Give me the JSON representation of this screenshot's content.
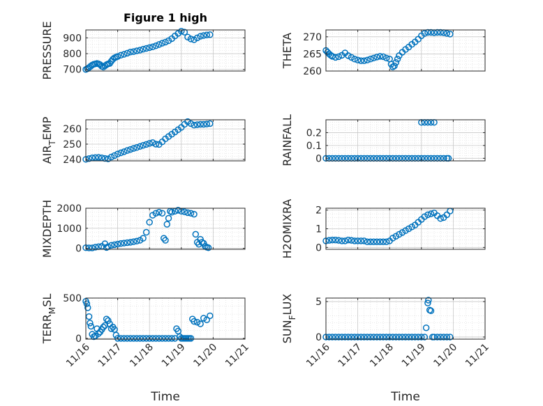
{
  "figure": {
    "title": "Figure 1 high",
    "xlabel": "Time",
    "x_ticks": [
      "11/16",
      "11/17",
      "11/18",
      "11/19",
      "11/20",
      "11/21"
    ],
    "marker_color": "#0072BD"
  },
  "chart_data": [
    {
      "type": "scatter",
      "ylabel": "PRESSURE",
      "ylim": [
        690,
        950
      ],
      "yticks": [
        700,
        800,
        900
      ],
      "title": "Figure 1 high",
      "grid": true,
      "x": [
        0,
        0.05,
        0.1,
        0.15,
        0.2,
        0.25,
        0.3,
        0.35,
        0.4,
        0.45,
        0.5,
        0.55,
        0.6,
        0.65,
        0.7,
        0.75,
        0.8,
        0.85,
        0.9,
        0.95,
        1.0,
        1.1,
        1.2,
        1.3,
        1.4,
        1.5,
        1.6,
        1.7,
        1.8,
        1.9,
        2.0,
        2.1,
        2.2,
        2.3,
        2.4,
        2.5,
        2.6,
        2.7,
        2.8,
        2.9,
        3.0,
        3.1,
        3.2,
        3.3,
        3.4,
        3.5,
        3.6,
        3.7,
        3.8,
        3.9
      ],
      "values": [
        700,
        705,
        712,
        720,
        728,
        733,
        735,
        738,
        735,
        730,
        720,
        715,
        723,
        730,
        735,
        738,
        752,
        765,
        773,
        778,
        782,
        790,
        796,
        803,
        810,
        813,
        818,
        822,
        828,
        833,
        838,
        843,
        850,
        858,
        866,
        873,
        882,
        895,
        912,
        928,
        942,
        936,
        905,
        893,
        888,
        900,
        910,
        915,
        918,
        920
      ]
    },
    {
      "type": "scatter",
      "ylabel": "THETA",
      "ylim": [
        260,
        272
      ],
      "yticks": [
        260,
        265,
        270
      ],
      "grid": true,
      "x": [
        0,
        0.05,
        0.1,
        0.15,
        0.2,
        0.3,
        0.4,
        0.5,
        0.6,
        0.7,
        0.8,
        0.9,
        1.0,
        1.1,
        1.2,
        1.3,
        1.4,
        1.5,
        1.6,
        1.7,
        1.8,
        1.9,
        2.0,
        2.05,
        2.1,
        2.15,
        2.2,
        2.25,
        2.3,
        2.4,
        2.5,
        2.6,
        2.7,
        2.8,
        2.9,
        3.0,
        3.1,
        3.2,
        3.3,
        3.4,
        3.5,
        3.6,
        3.7,
        3.8,
        3.9
      ],
      "values": [
        266,
        265.5,
        265,
        264.6,
        264.3,
        264,
        264.2,
        264.6,
        265.3,
        264.5,
        264,
        263.5,
        263.2,
        263,
        263,
        263.2,
        263.5,
        263.8,
        264.1,
        264.3,
        264.2,
        263.8,
        263.5,
        262,
        261.2,
        261.5,
        262.5,
        263.5,
        264.5,
        265.5,
        266.3,
        267,
        267.8,
        268.5,
        269.3,
        270.3,
        271,
        271.3,
        271.3,
        271.2,
        271.3,
        271.3,
        271.2,
        271,
        270.8
      ]
    },
    {
      "type": "scatter",
      "ylabel": "AIR_TEMP",
      "ylim": [
        239,
        266
      ],
      "yticks": [
        240,
        250,
        260
      ],
      "grid": true,
      "x": [
        0,
        0.1,
        0.2,
        0.3,
        0.4,
        0.5,
        0.6,
        0.7,
        0.8,
        0.9,
        1.0,
        1.1,
        1.2,
        1.3,
        1.4,
        1.5,
        1.6,
        1.7,
        1.8,
        1.9,
        2.0,
        2.1,
        2.2,
        2.3,
        2.4,
        2.5,
        2.6,
        2.7,
        2.8,
        2.9,
        3.0,
        3.1,
        3.2,
        3.3,
        3.4,
        3.5,
        3.6,
        3.7,
        3.8,
        3.9
      ],
      "values": [
        240,
        240.5,
        241,
        241.2,
        241.3,
        241,
        240.6,
        240.3,
        241.5,
        242.5,
        243.5,
        244.3,
        245,
        245.8,
        246.5,
        247.2,
        247.8,
        248.5,
        249.2,
        249.8,
        250.5,
        251,
        250,
        249.8,
        251.5,
        253.5,
        255,
        256.5,
        258,
        259.5,
        261,
        263,
        264.8,
        263.5,
        262.5,
        262.8,
        263,
        263,
        263.2,
        263.5
      ]
    },
    {
      "type": "scatter",
      "ylabel": "RAINFALL",
      "ylim": [
        -0.02,
        0.3
      ],
      "yticks": [
        0,
        0.1,
        0.2
      ],
      "grid": true,
      "x": [
        0,
        0.1,
        0.2,
        0.3,
        0.4,
        0.5,
        0.6,
        0.7,
        0.8,
        0.9,
        1.0,
        1.1,
        1.2,
        1.3,
        1.4,
        1.5,
        1.6,
        1.7,
        1.8,
        1.9,
        2.0,
        2.1,
        2.2,
        2.3,
        2.4,
        2.5,
        2.6,
        2.7,
        2.8,
        2.9,
        3.0,
        3.1,
        3.2,
        3.3,
        3.4,
        3.5,
        3.6,
        3.7,
        3.8,
        3.85,
        3.0,
        3.1,
        3.2,
        3.3,
        3.4
      ],
      "values": [
        0,
        0,
        0,
        0,
        0,
        0,
        0,
        0,
        0,
        0,
        0,
        0,
        0,
        0,
        0,
        0,
        0,
        0,
        0,
        0,
        0,
        0,
        0,
        0,
        0,
        0,
        0,
        0,
        0,
        0,
        0,
        0,
        0,
        0,
        0,
        0,
        0,
        0,
        0,
        0,
        0.28,
        0.28,
        0.28,
        0.28,
        0.28
      ]
    },
    {
      "type": "scatter",
      "ylabel": "MIXDEPTH",
      "ylim": [
        -50,
        2000
      ],
      "yticks": [
        0,
        1000,
        2000
      ],
      "grid": true,
      "x": [
        0,
        0.1,
        0.2,
        0.3,
        0.4,
        0.5,
        0.6,
        0.65,
        0.7,
        0.8,
        0.9,
        1.0,
        1.1,
        1.2,
        1.3,
        1.4,
        1.5,
        1.6,
        1.7,
        1.8,
        1.9,
        2.0,
        2.1,
        2.2,
        2.3,
        2.4,
        2.45,
        2.5,
        2.55,
        2.6,
        2.65,
        2.7,
        2.8,
        2.9,
        3.0,
        3.1,
        3.2,
        3.3,
        3.4,
        3.45,
        3.5,
        3.55,
        3.6,
        3.65,
        3.7,
        3.75,
        3.8,
        3.85
      ],
      "values": [
        30,
        20,
        20,
        60,
        80,
        100,
        230,
        40,
        80,
        150,
        180,
        210,
        240,
        260,
        280,
        300,
        330,
        360,
        400,
        500,
        800,
        1300,
        1650,
        1750,
        1800,
        1750,
        500,
        400,
        1200,
        1500,
        1850,
        1800,
        1850,
        1900,
        1850,
        1820,
        1780,
        1750,
        1700,
        700,
        300,
        200,
        450,
        300,
        250,
        100,
        60,
        30
      ]
    },
    {
      "type": "scatter",
      "ylabel": "H2OMIXRA",
      "ylim": [
        -0.1,
        2.1
      ],
      "yticks": [
        0,
        1,
        2
      ],
      "grid": true,
      "x": [
        0,
        0.1,
        0.2,
        0.3,
        0.4,
        0.5,
        0.6,
        0.7,
        0.8,
        0.9,
        1.0,
        1.1,
        1.2,
        1.3,
        1.4,
        1.5,
        1.6,
        1.7,
        1.8,
        1.9,
        2.0,
        2.1,
        2.2,
        2.3,
        2.4,
        2.5,
        2.6,
        2.7,
        2.8,
        2.9,
        3.0,
        3.1,
        3.2,
        3.3,
        3.4,
        3.5,
        3.6,
        3.7,
        3.8,
        3.9
      ],
      "values": [
        0.35,
        0.38,
        0.4,
        0.4,
        0.38,
        0.35,
        0.35,
        0.4,
        0.38,
        0.35,
        0.35,
        0.35,
        0.35,
        0.3,
        0.3,
        0.3,
        0.3,
        0.3,
        0.3,
        0.3,
        0.35,
        0.5,
        0.6,
        0.7,
        0.8,
        0.9,
        1.0,
        1.1,
        1.2,
        1.35,
        1.5,
        1.65,
        1.75,
        1.8,
        1.85,
        1.7,
        1.55,
        1.6,
        1.75,
        1.95
      ]
    },
    {
      "type": "scatter",
      "ylabel": "TERR_MSL",
      "ylim": [
        -10,
        500
      ],
      "yticks": [
        0,
        500
      ],
      "grid": true,
      "x": [
        0,
        0.03,
        0.06,
        0.1,
        0.13,
        0.16,
        0.2,
        0.25,
        0.3,
        0.35,
        0.4,
        0.45,
        0.5,
        0.55,
        0.6,
        0.65,
        0.7,
        0.75,
        0.8,
        0.85,
        0.9,
        0.95,
        1.0,
        1.1,
        1.2,
        1.3,
        1.4,
        1.5,
        1.6,
        1.7,
        1.8,
        1.9,
        2.0,
        2.1,
        2.2,
        2.3,
        2.4,
        2.5,
        2.6,
        2.7,
        2.8,
        2.85,
        2.9,
        2.95,
        3.0,
        3.05,
        3.1,
        3.15,
        3.2,
        3.25,
        3.3,
        3.35,
        3.4,
        3.5,
        3.6,
        3.7,
        3.8,
        3.9
      ],
      "values": [
        460,
        430,
        380,
        270,
        190,
        150,
        50,
        20,
        30,
        120,
        60,
        80,
        110,
        140,
        160,
        240,
        220,
        180,
        120,
        140,
        110,
        40,
        0,
        0,
        0,
        0,
        0,
        0,
        0,
        0,
        0,
        0,
        0,
        0,
        0,
        0,
        0,
        0,
        0,
        0,
        0,
        120,
        90,
        20,
        0,
        0,
        0,
        0,
        0,
        0,
        0,
        240,
        210,
        200,
        180,
        250,
        230,
        280
      ]
    },
    {
      "type": "scatter",
      "ylabel": "SUN_FLUX",
      "ylim": [
        -0.3,
        5.5
      ],
      "yticks": [
        0,
        5
      ],
      "grid": true,
      "x": [
        0,
        0.1,
        0.2,
        0.3,
        0.4,
        0.5,
        0.6,
        0.7,
        0.8,
        0.9,
        1.0,
        1.1,
        1.2,
        1.3,
        1.4,
        1.5,
        1.6,
        1.7,
        1.8,
        1.9,
        2.0,
        2.1,
        2.2,
        2.3,
        2.4,
        2.5,
        2.6,
        2.7,
        2.8,
        2.9,
        3.0,
        3.1,
        3.15,
        3.2,
        3.22,
        3.26,
        3.3,
        3.35,
        3.4,
        3.5,
        3.6,
        3.7,
        3.8,
        3.9
      ],
      "values": [
        0,
        0,
        0,
        0,
        0,
        0,
        0,
        0,
        0,
        0,
        0,
        0,
        0,
        0,
        0,
        0,
        0,
        0,
        0,
        0,
        0,
        0,
        0,
        0,
        0,
        0,
        0,
        0,
        0,
        0,
        0,
        0,
        1.3,
        4.8,
        5.2,
        3.8,
        3.7,
        0,
        0,
        0,
        0,
        0,
        0,
        0
      ]
    }
  ]
}
